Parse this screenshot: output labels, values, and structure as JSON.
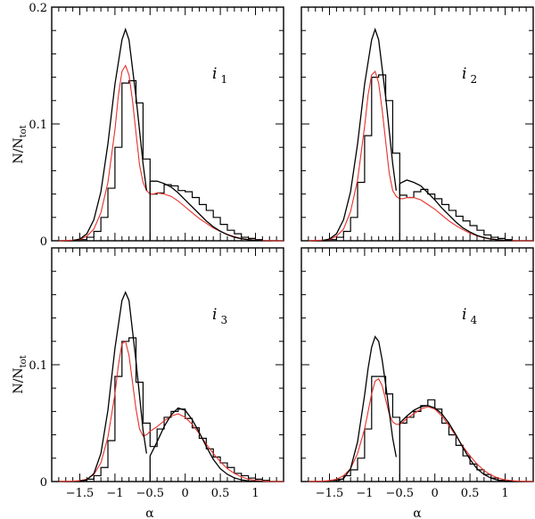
{
  "chart_data": {
    "type": "histogram-grid",
    "xlabel": "α",
    "ylabel_main": "N/N",
    "ylabel_sub": "tot",
    "xlim": [
      -1.9,
      1.4
    ],
    "xticks": [
      -1.5,
      -1,
      -0.5,
      0,
      0.5,
      1
    ],
    "xtick_labels": [
      "−1.5",
      "−1",
      "−0.5",
      "0",
      "0.5",
      "1"
    ],
    "top_row": {
      "ylim": [
        0,
        0.2
      ],
      "yticks": [
        0,
        0.1,
        0.2
      ],
      "ytick_labels": [
        "0",
        "0.1",
        "0.2"
      ]
    },
    "bottom_row": {
      "ylim": [
        0,
        0.2
      ],
      "yticks": [
        0,
        0.1
      ],
      "ytick_labels": [
        "0",
        "0.1"
      ]
    },
    "bin_width": 0.1,
    "panels": [
      {
        "label": "i",
        "label_sub": "1",
        "histogram": {
          "bin_edges_start": -1.8,
          "values": [
            0,
            0,
            0,
            0.001,
            0.003,
            0.008,
            0.02,
            0.045,
            0.08,
            0.135,
            0.137,
            0.118,
            0.07,
            0.04,
            0.041,
            0.048,
            0.047,
            0.043,
            0.042,
            0.037,
            0.031,
            0.026,
            0.02,
            0.014,
            0.009,
            0.006,
            0.003,
            0.002,
            0.001,
            0,
            0,
            0
          ]
        },
        "gaussian_left": {
          "x": [
            -1.6,
            -1.5,
            -1.4,
            -1.3,
            -1.2,
            -1.1,
            -1.0,
            -0.9,
            -0.85,
            -0.8,
            -0.7,
            -0.6,
            -0.55
          ],
          "y": [
            0.0002,
            0.0015,
            0.006,
            0.018,
            0.042,
            0.083,
            0.134,
            0.172,
            0.181,
            0.172,
            0.123,
            0.066,
            0.043
          ]
        },
        "gaussian_right": {
          "x": [
            -0.5,
            -0.4,
            -0.3,
            -0.2,
            -0.1,
            0,
            0.1,
            0.2,
            0.3,
            0.4,
            0.5,
            0.6,
            0.7,
            0.8,
            0.9,
            1.0,
            1.1
          ],
          "y": [
            0.051,
            0.051,
            0.049,
            0.046,
            0.041,
            0.035,
            0.029,
            0.023,
            0.017,
            0.012,
            0.0082,
            0.0052,
            0.0031,
            0.0017,
            0.0009,
            0.0004,
            0.0002
          ]
        },
        "smooth": {
          "x": [
            -1.8,
            -1.6,
            -1.5,
            -1.4,
            -1.3,
            -1.2,
            -1.1,
            -1.0,
            -0.95,
            -0.9,
            -0.85,
            -0.8,
            -0.75,
            -0.7,
            -0.65,
            -0.6,
            -0.55,
            -0.5,
            -0.45,
            -0.4,
            -0.3,
            -0.2,
            -0.1,
            0,
            0.1,
            0.2,
            0.3,
            0.4,
            0.5,
            0.6,
            0.7,
            0.8,
            0.9,
            1.0,
            1.1,
            1.2,
            1.3,
            1.4
          ],
          "y": [
            0,
            0.0005,
            0.001,
            0.004,
            0.01,
            0.024,
            0.05,
            0.095,
            0.125,
            0.145,
            0.15,
            0.142,
            0.12,
            0.092,
            0.065,
            0.05,
            0.043,
            0.04,
            0.04,
            0.041,
            0.04,
            0.038,
            0.034,
            0.029,
            0.024,
            0.019,
            0.015,
            0.011,
            0.008,
            0.0055,
            0.0035,
            0.002,
            0.001,
            0.0005,
            0.0002,
            0.0001,
            0,
            0
          ]
        }
      },
      {
        "label": "i",
        "label_sub": "2",
        "histogram": {
          "bin_edges_start": -1.8,
          "values": [
            0,
            0,
            0,
            0.001,
            0.003,
            0.008,
            0.02,
            0.05,
            0.09,
            0.14,
            0.142,
            0.12,
            0.075,
            0.039,
            0.037,
            0.042,
            0.044,
            0.04,
            0.036,
            0.031,
            0.026,
            0.021,
            0.017,
            0.013,
            0.009,
            0.005,
            0.003,
            0.002,
            0.001,
            0,
            0,
            0
          ]
        },
        "gaussian_left": {
          "x": [
            -1.6,
            -1.5,
            -1.4,
            -1.3,
            -1.2,
            -1.1,
            -1.0,
            -0.9,
            -0.85,
            -0.8,
            -0.7,
            -0.6,
            -0.55
          ],
          "y": [
            0.0002,
            0.0015,
            0.006,
            0.018,
            0.042,
            0.083,
            0.134,
            0.172,
            0.181,
            0.172,
            0.123,
            0.066,
            0.043
          ]
        },
        "gaussian_right": {
          "x": [
            -0.5,
            -0.4,
            -0.3,
            -0.2,
            -0.1,
            0,
            0.1,
            0.2,
            0.3,
            0.4,
            0.5,
            0.6,
            0.7,
            0.8,
            0.9,
            1.0,
            1.1
          ],
          "y": [
            0.049,
            0.052,
            0.05,
            0.047,
            0.041,
            0.035,
            0.028,
            0.022,
            0.016,
            0.011,
            0.0075,
            0.0046,
            0.0027,
            0.0015,
            0.0008,
            0.0004,
            0.0002
          ]
        },
        "smooth": {
          "x": [
            -1.8,
            -1.6,
            -1.5,
            -1.4,
            -1.3,
            -1.2,
            -1.1,
            -1.0,
            -0.95,
            -0.9,
            -0.85,
            -0.8,
            -0.75,
            -0.7,
            -0.65,
            -0.6,
            -0.55,
            -0.5,
            -0.45,
            -0.4,
            -0.3,
            -0.2,
            -0.1,
            0,
            0.1,
            0.2,
            0.3,
            0.4,
            0.5,
            0.6,
            0.7,
            0.8,
            0.9,
            1.0,
            1.1,
            1.2,
            1.3,
            1.4
          ],
          "y": [
            0,
            0.0005,
            0.001,
            0.004,
            0.01,
            0.025,
            0.052,
            0.098,
            0.125,
            0.142,
            0.145,
            0.135,
            0.112,
            0.085,
            0.058,
            0.043,
            0.038,
            0.036,
            0.036,
            0.037,
            0.037,
            0.035,
            0.031,
            0.027,
            0.022,
            0.017,
            0.013,
            0.0095,
            0.0065,
            0.0042,
            0.0025,
            0.0014,
            0.0007,
            0.0003,
            0.0001,
            0,
            0,
            0
          ]
        }
      },
      {
        "label": "i",
        "label_sub": "3",
        "histogram": {
          "bin_edges_start": -1.8,
          "values": [
            0,
            0,
            0,
            0.001,
            0.002,
            0.005,
            0.012,
            0.035,
            0.09,
            0.12,
            0.123,
            0.085,
            0.05,
            0.03,
            0.045,
            0.055,
            0.06,
            0.062,
            0.054,
            0.046,
            0.037,
            0.028,
            0.021,
            0.016,
            0.012,
            0.007,
            0.005,
            0.003,
            0.002,
            0.001,
            0,
            0
          ]
        },
        "gaussian_left": {
          "x": [
            -1.5,
            -1.4,
            -1.3,
            -1.2,
            -1.1,
            -1.0,
            -0.9,
            -0.85,
            -0.8,
            -0.7,
            -0.6,
            -0.55
          ],
          "y": [
            0.0003,
            0.0015,
            0.0068,
            0.024,
            0.061,
            0.114,
            0.155,
            0.162,
            0.155,
            0.103,
            0.044,
            0.024
          ]
        },
        "gaussian_right": {
          "x": [
            -0.5,
            -0.4,
            -0.3,
            -0.2,
            -0.1,
            0,
            0.1,
            0.2,
            0.3,
            0.4,
            0.5,
            0.6,
            0.7,
            0.8,
            0.9,
            1.0,
            1.1
          ],
          "y": [
            0.022,
            0.034,
            0.047,
            0.057,
            0.063,
            0.061,
            0.053,
            0.042,
            0.03,
            0.019,
            0.011,
            0.0062,
            0.0031,
            0.0014,
            0.0006,
            0.0002,
            0.0001
          ]
        },
        "smooth": {
          "x": [
            -1.8,
            -1.6,
            -1.5,
            -1.4,
            -1.3,
            -1.2,
            -1.1,
            -1.0,
            -0.95,
            -0.9,
            -0.85,
            -0.8,
            -0.75,
            -0.7,
            -0.65,
            -0.6,
            -0.55,
            -0.5,
            -0.45,
            -0.4,
            -0.3,
            -0.2,
            -0.1,
            0,
            0.1,
            0.2,
            0.3,
            0.4,
            0.5,
            0.6,
            0.7,
            0.8,
            0.9,
            1.0,
            1.1,
            1.2,
            1.3,
            1.4
          ],
          "y": [
            0,
            0.0003,
            0.0008,
            0.002,
            0.006,
            0.016,
            0.038,
            0.075,
            0.1,
            0.118,
            0.12,
            0.108,
            0.085,
            0.062,
            0.045,
            0.039,
            0.04,
            0.043,
            0.045,
            0.047,
            0.052,
            0.056,
            0.058,
            0.055,
            0.049,
            0.041,
            0.032,
            0.024,
            0.017,
            0.011,
            0.007,
            0.004,
            0.002,
            0.001,
            0.0004,
            0.0001,
            0,
            0
          ]
        }
      },
      {
        "label": "i",
        "label_sub": "4",
        "histogram": {
          "bin_edges_start": -1.8,
          "values": [
            0,
            0,
            0,
            0.001,
            0.002,
            0.005,
            0.01,
            0.02,
            0.045,
            0.09,
            0.09,
            0.075,
            0.055,
            0.05,
            0.055,
            0.06,
            0.065,
            0.07,
            0.062,
            0.05,
            0.04,
            0.031,
            0.022,
            0.015,
            0.01,
            0.006,
            0.003,
            0.001,
            0,
            0,
            0,
            0
          ]
        },
        "gaussian_left": {
          "x": [
            -1.4,
            -1.3,
            -1.2,
            -1.1,
            -1.0,
            -0.95,
            -0.9,
            -0.85,
            -0.8,
            -0.75,
            -0.7,
            -0.6,
            -0.55
          ],
          "y": [
            0.0004,
            0.0025,
            0.011,
            0.034,
            0.074,
            0.097,
            0.115,
            0.124,
            0.12,
            0.104,
            0.083,
            0.037,
            0.021
          ]
        },
        "gaussian_right": {
          "x": [
            -0.5,
            -0.4,
            -0.3,
            -0.2,
            -0.1,
            0,
            0.1,
            0.2,
            0.3,
            0.4,
            0.5,
            0.6,
            0.7,
            0.8,
            0.9,
            1.0,
            1.1
          ],
          "y": [
            0.05,
            0.056,
            0.061,
            0.064,
            0.065,
            0.063,
            0.058,
            0.05,
            0.04,
            0.029,
            0.019,
            0.011,
            0.006,
            0.0029,
            0.0012,
            0.0005,
            0.0002
          ]
        },
        "smooth": {
          "x": [
            -1.8,
            -1.6,
            -1.5,
            -1.4,
            -1.3,
            -1.2,
            -1.1,
            -1.0,
            -0.95,
            -0.9,
            -0.85,
            -0.8,
            -0.75,
            -0.7,
            -0.65,
            -0.6,
            -0.55,
            -0.5,
            -0.45,
            -0.4,
            -0.3,
            -0.2,
            -0.1,
            0,
            0.1,
            0.2,
            0.3,
            0.4,
            0.5,
            0.6,
            0.7,
            0.8,
            0.9,
            1.0,
            1.1,
            1.2,
            1.3,
            1.4
          ],
          "y": [
            0,
            0.0003,
            0.0008,
            0.002,
            0.005,
            0.011,
            0.024,
            0.045,
            0.06,
            0.075,
            0.086,
            0.088,
            0.082,
            0.07,
            0.058,
            0.051,
            0.049,
            0.049,
            0.051,
            0.054,
            0.058,
            0.062,
            0.064,
            0.062,
            0.056,
            0.048,
            0.039,
            0.03,
            0.022,
            0.015,
            0.0095,
            0.0055,
            0.003,
            0.0015,
            0.0007,
            0.0003,
            0.0001,
            0
          ]
        }
      }
    ],
    "colors": {
      "histogram": "#000000",
      "model": "#000000",
      "smooth": "#e8302a"
    }
  }
}
